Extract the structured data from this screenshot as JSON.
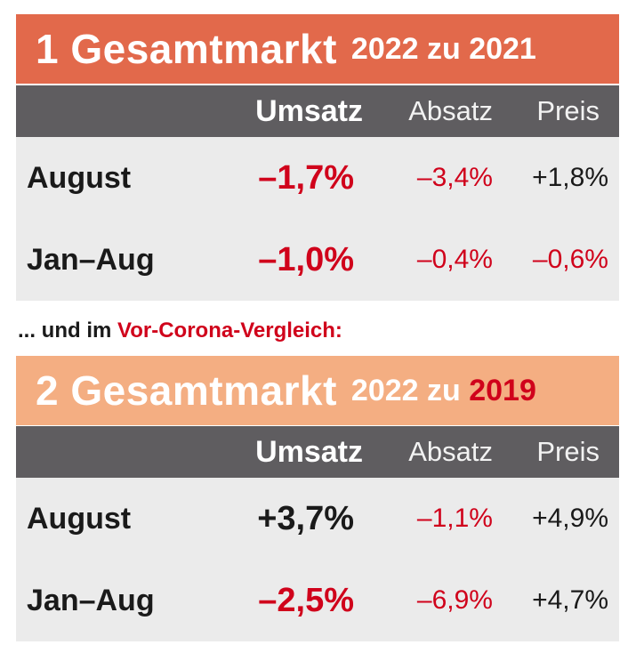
{
  "section1": {
    "title_big": "1 Gesamtmarkt",
    "title_small": "2022 zu 2021",
    "headers": {
      "umsatz": "Umsatz",
      "absatz": "Absatz",
      "preis": "Preis"
    },
    "rows": [
      {
        "label": "August",
        "umsatz": "–1,7%",
        "absatz": "–3,4%",
        "preis": "+1,8%"
      },
      {
        "label": "Jan–Aug",
        "umsatz": "–1,0%",
        "absatz": "–0,4%",
        "preis": "–0,6%"
      }
    ]
  },
  "subline": {
    "prefix": "... und im",
    "highlight": "Vor-Corona-Vergleich:"
  },
  "section2": {
    "title_big": "2 Gesamtmarkt",
    "title_small_prefix": "2022 zu",
    "title_small_highlight": "2019",
    "headers": {
      "umsatz": "Umsatz",
      "absatz": "Absatz",
      "preis": "Preis"
    },
    "rows": [
      {
        "label": "August",
        "umsatz": "+3,7%",
        "absatz": "–1,1%",
        "preis": "+4,9%"
      },
      {
        "label": "Jan–Aug",
        "umsatz": "–2,5%",
        "absatz": "–6,9%",
        "preis": "+4,7%"
      }
    ]
  },
  "colors": {
    "title1_bg": "#e2694b",
    "title2_bg": "#f4ae82",
    "header_bg": "#5f5d60",
    "body_bg": "#ebebeb",
    "negative": "#d0021b",
    "positive": "#1a1a1a"
  }
}
